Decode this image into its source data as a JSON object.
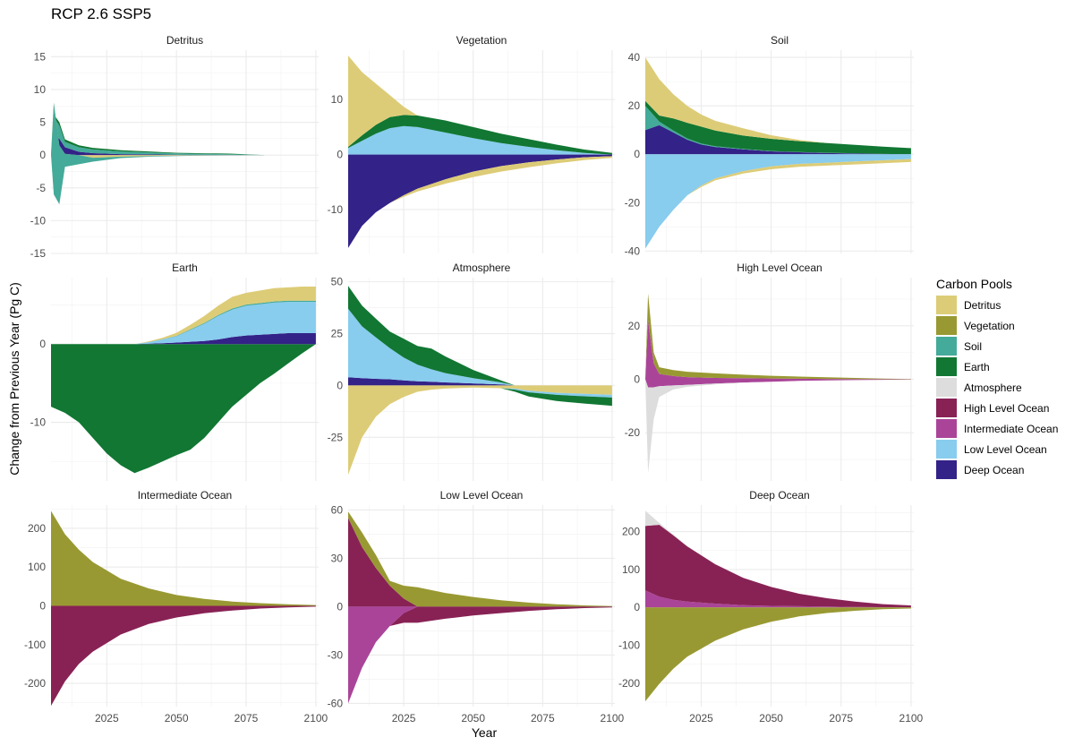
{
  "chart_data": {
    "type": "area",
    "title": "RCP 2.6 SSP5",
    "xlabel": "Year",
    "ylabel": "Change from Previous Year (Pg C)",
    "xlim": [
      2005,
      2101
    ],
    "xticks": [
      2025,
      2050,
      2075,
      2100
    ],
    "grid": true,
    "legend": {
      "title": "Carbon Pools",
      "position": "right",
      "entries": [
        {
          "name": "Detritus",
          "color": "#DDCC77"
        },
        {
          "name": "Vegetation",
          "color": "#999933"
        },
        {
          "name": "Soil",
          "color": "#44AA99"
        },
        {
          "name": "Earth",
          "color": "#117733"
        },
        {
          "name": "Atmosphere",
          "color": "#DDDDDD"
        },
        {
          "name": "High Level Ocean",
          "color": "#882255"
        },
        {
          "name": "Intermediate Ocean",
          "color": "#AA4499"
        },
        {
          "name": "Low Level Ocean",
          "color": "#88CCEE"
        },
        {
          "name": "Deep Ocean",
          "color": "#332288"
        }
      ]
    },
    "facets": [
      {
        "name": "Detritus",
        "ylim": [
          -15,
          16
        ],
        "yticks": [
          -15,
          -10,
          -5,
          0,
          5,
          10,
          15
        ],
        "x": [
          2005,
          2006,
          2008,
          2010,
          2015,
          2020,
          2030,
          2040,
          2050,
          2060,
          2070,
          2082
        ],
        "series": [
          {
            "name": "Deep Ocean",
            "values": [
              0,
              3.2,
              2.5,
              1.2,
              0.5,
              0.3,
              0.15,
              0.1,
              0.05,
              0.03,
              0.02,
              0
            ]
          },
          {
            "name": "Soil",
            "values": [
              0,
              2.6,
              2.0,
              0.8,
              0.7,
              0.55,
              0.4,
              0.3,
              0.2,
              0.15,
              0.1,
              0
            ]
          },
          {
            "name": "Earth",
            "values": [
              0,
              0.4,
              0.5,
              0.4,
              0.3,
              0.25,
              0.2,
              0.15,
              0.1,
              0.1,
              0.1,
              0
            ]
          },
          {
            "name": "Detritus",
            "values": [
              0,
              8,
              1.5,
              0.2,
              0,
              -0.4,
              -0.25,
              -0.15,
              -0.1,
              -0.05,
              -0.03,
              0
            ]
          },
          {
            "name": "Soil",
            "values": [
              0,
              -14,
              -9,
              -2,
              -1.4,
              -0.6,
              -0.2,
              -0.1,
              -0.05,
              -0.03,
              -0.01,
              0
            ]
          }
        ]
      },
      {
        "name": "Vegetation",
        "ylim": [
          -18,
          19
        ],
        "yticks": [
          -10,
          0,
          10
        ],
        "x": [
          2005,
          2010,
          2015,
          2020,
          2025,
          2030,
          2040,
          2050,
          2060,
          2070,
          2080,
          2090,
          2100
        ],
        "series": [
          {
            "name": "Low Level Ocean",
            "values": [
              1.2,
              2.5,
              3.8,
              4.8,
              5.2,
              5.0,
              4.0,
              3.0,
              2.1,
              1.4,
              0.8,
              0.3,
              0
            ]
          },
          {
            "name": "Earth",
            "values": [
              0.2,
              1.0,
              1.6,
              2.0,
              2.0,
              2.1,
              2.2,
              2.0,
              1.7,
              1.4,
              1.0,
              0.6,
              0.3
            ]
          },
          {
            "name": "Detritus",
            "values": [
              16.6,
              11.5,
              7.5,
              4.0,
              1.5,
              0,
              0,
              0,
              0,
              0,
              0,
              0,
              0
            ]
          },
          {
            "name": "Deep Ocean",
            "values": [
              -17,
              -13,
              -10.5,
              -8.8,
              -7.4,
              -6.2,
              -4.5,
              -3.1,
              -2.1,
              -1.4,
              -0.9,
              -0.5,
              -0.3
            ]
          },
          {
            "name": "Detritus",
            "values": [
              0,
              0,
              0,
              0,
              -0.3,
              -0.5,
              -0.8,
              -1.0,
              -1.0,
              -0.9,
              -0.7,
              -0.5,
              -0.3
            ]
          }
        ]
      },
      {
        "name": "Soil",
        "ylim": [
          -41,
          43
        ],
        "yticks": [
          -40,
          -20,
          0,
          20,
          40
        ],
        "x": [
          2005,
          2010,
          2015,
          2020,
          2025,
          2030,
          2040,
          2050,
          2060,
          2070,
          2080,
          2090,
          2100
        ],
        "series": [
          {
            "name": "Deep Ocean",
            "values": [
              10,
              12,
              9,
              6,
              4,
              3,
              2,
              1.2,
              0.8,
              0.5,
              0.3,
              0.1,
              0
            ]
          },
          {
            "name": "Soil",
            "values": [
              10,
              1.5,
              0.8,
              0.5,
              0.4,
              0.3,
              0.2,
              0.15,
              0.1,
              0.1,
              0.1,
              0,
              0
            ]
          },
          {
            "name": "Earth",
            "values": [
              2,
              2.5,
              5,
              6.5,
              7,
              6.5,
              5.5,
              5,
              4.5,
              4,
              3.5,
              3,
              2.5
            ]
          },
          {
            "name": "Detritus",
            "values": [
              18,
              15,
              10,
              7,
              5,
              4,
              3,
              1.5,
              0.5,
              0,
              0,
              0,
              0
            ]
          },
          {
            "name": "Low Level Ocean",
            "values": [
              -39,
              -30,
              -23,
              -17,
              -13,
              -10,
              -7,
              -5,
              -4,
              -3.5,
              -3,
              -2.5,
              -2
            ]
          },
          {
            "name": "Detritus",
            "values": [
              0,
              0,
              0,
              0,
              -0.5,
              -0.8,
              -1,
              -1.2,
              -1.2,
              -1.2,
              -1.2,
              -1.2,
              -1.2
            ]
          }
        ]
      },
      {
        "name": "Earth",
        "ylim": [
          -17.5,
          8.5
        ],
        "yticks": [
          -10,
          0
        ],
        "x": [
          2005,
          2010,
          2015,
          2020,
          2025,
          2030,
          2035,
          2040,
          2045,
          2050,
          2055,
          2060,
          2065,
          2070,
          2075,
          2080,
          2085,
          2090,
          2095,
          2100
        ],
        "series": [
          {
            "name": "Earth",
            "values": [
              -8,
              -8.8,
              -10,
              -12,
              -14,
              -15.5,
              -16.5,
              -15.8,
              -15,
              -14.2,
              -13.5,
              -12,
              -10,
              -8,
              -6.5,
              -5,
              -3.8,
              -2.5,
              -1.2,
              0
            ]
          },
          {
            "name": "Deep Ocean",
            "values": [
              0,
              0,
              0,
              0,
              0,
              0,
              0,
              0.05,
              0.1,
              0.2,
              0.3,
              0.4,
              0.6,
              0.9,
              1.1,
              1.2,
              1.3,
              1.4,
              1.4,
              1.4
            ]
          },
          {
            "name": "Low Level Ocean",
            "values": [
              0,
              0,
              0,
              0,
              0,
              0,
              0,
              0.2,
              0.5,
              0.8,
              1.5,
              2.2,
              3.0,
              3.5,
              3.8,
              3.9,
              4.0,
              4.0,
              4.0,
              4.0
            ]
          },
          {
            "name": "Soil",
            "values": [
              0,
              0,
              0,
              0,
              0,
              0,
              0,
              0,
              0.02,
              0.05,
              0.08,
              0.1,
              0.12,
              0.15,
              0.15,
              0.15,
              0.15,
              0.15,
              0.15,
              0.15
            ]
          },
          {
            "name": "Detritus",
            "values": [
              0,
              0,
              0,
              0,
              0,
              0,
              0,
              0.1,
              0.2,
              0.4,
              0.6,
              0.9,
              1.2,
              1.5,
              1.5,
              1.6,
              1.7,
              1.7,
              1.8,
              1.8
            ]
          }
        ]
      },
      {
        "name": "Atmosphere",
        "ylim": [
          -46,
          52
        ],
        "yticks": [
          -25,
          0,
          25,
          50
        ],
        "x": [
          2005,
          2010,
          2015,
          2020,
          2025,
          2030,
          2035,
          2040,
          2050,
          2060,
          2065,
          2070,
          2080,
          2090,
          2100
        ],
        "series": [
          {
            "name": "Deep Ocean",
            "values": [
              4,
              3.5,
              3.2,
              3,
              2.5,
              2,
              1.8,
              1.5,
              1,
              0.5,
              0,
              0,
              0,
              0,
              0
            ]
          },
          {
            "name": "Low Level Ocean",
            "values": [
              33,
              25,
              20,
              15,
              11,
              8,
              6,
              4.5,
              2.5,
              1,
              0,
              0,
              0,
              0,
              0
            ]
          },
          {
            "name": "Earth",
            "values": [
              11,
              10,
              9,
              8,
              9,
              9,
              10,
              8,
              4,
              1,
              0,
              0,
              0,
              0,
              0
            ]
          },
          {
            "name": "Detritus",
            "values": [
              -43,
              -25,
              -15,
              -9,
              -5.5,
              -3,
              -2,
              -1.5,
              -1,
              -1.3,
              -1.5,
              -2.5,
              -3.5,
              -4,
              -4.5
            ]
          },
          {
            "name": "Low Level Ocean",
            "values": [
              0,
              0,
              0,
              0,
              0,
              0,
              0,
              0,
              0,
              0,
              -0.5,
              -0.8,
              -1,
              -1.2,
              -1.3
            ]
          },
          {
            "name": "Earth",
            "values": [
              0,
              0,
              0,
              0,
              0,
              0,
              0,
              0,
              0,
              0,
              -1,
              -2,
              -3,
              -3.5,
              -4
            ]
          }
        ]
      },
      {
        "name": "High Level Ocean",
        "ylim": [
          -38,
          38
        ],
        "yticks": [
          -20,
          0,
          20
        ],
        "x": [
          2005,
          2006,
          2008,
          2010,
          2015,
          2020,
          2030,
          2040,
          2050,
          2060,
          2070,
          2080,
          2090,
          2100
        ],
        "series": [
          {
            "name": "Intermediate Ocean",
            "values": [
              0,
              22,
              6,
              2,
              1.2,
              0.8,
              0.5,
              0.4,
              0.3,
              0.2,
              0.15,
              0.1,
              0.05,
              0
            ]
          },
          {
            "name": "Vegetation",
            "values": [
              0,
              10,
              4,
              2.5,
              2.2,
              2.0,
              1.7,
              1.3,
              1.0,
              0.8,
              0.6,
              0.4,
              0.2,
              0.1
            ]
          },
          {
            "name": "Intermediate Ocean",
            "values": [
              0,
              -3,
              -3,
              -2.6,
              -2.3,
              -2.1,
              -1.6,
              -1.2,
              -0.9,
              -0.6,
              -0.4,
              -0.3,
              -0.2,
              -0.1
            ]
          },
          {
            "name": "Atmosphere",
            "values": [
              0,
              -32,
              -12,
              -4,
              -1.5,
              -0.7,
              -0.3,
              -0.1,
              0,
              0,
              0,
              0,
              0,
              0
            ]
          }
        ]
      },
      {
        "name": "Intermediate Ocean",
        "ylim": [
          -260,
          260
        ],
        "yticks": [
          -200,
          -100,
          0,
          100,
          200
        ],
        "x": [
          2005,
          2010,
          2015,
          2020,
          2030,
          2040,
          2050,
          2060,
          2070,
          2080,
          2090,
          2100
        ],
        "series": [
          {
            "name": "Vegetation",
            "values": [
              245,
              185,
              145,
              113,
              70,
              45,
              28,
              18,
              11,
              7,
              4,
              2
            ]
          },
          {
            "name": "High Level Ocean",
            "values": [
              -258,
              -195,
              -150,
              -118,
              -74,
              -47,
              -30,
              -19,
              -12,
              -7,
              -4,
              -2
            ]
          }
        ]
      },
      {
        "name": "Low Level Ocean",
        "ylim": [
          -62,
          63
        ],
        "yticks": [
          -60,
          -30,
          0,
          30,
          60
        ],
        "x": [
          2005,
          2010,
          2015,
          2020,
          2025,
          2030,
          2040,
          2050,
          2060,
          2070,
          2080,
          2090,
          2100
        ],
        "series": [
          {
            "name": "High Level Ocean",
            "values": [
              55,
              37,
              24,
              13,
              5,
              0,
              0,
              0,
              0,
              0,
              0,
              0,
              0
            ]
          },
          {
            "name": "Vegetation",
            "values": [
              4,
              9,
              8,
              3,
              8,
              12,
              8.5,
              6,
              4,
              2.5,
              1.5,
              0.8,
              0.4
            ]
          },
          {
            "name": "Intermediate Ocean",
            "values": [
              -60,
              -38,
              -22,
              -12,
              -4,
              0,
              0,
              0,
              0,
              0,
              0,
              0,
              0
            ]
          },
          {
            "name": "High Level Ocean",
            "values": [
              0,
              0,
              0,
              0,
              -6,
              -10,
              -7.5,
              -5.5,
              -4,
              -2.6,
              -1.6,
              -0.9,
              -0.5
            ]
          }
        ]
      },
      {
        "name": "Deep Ocean",
        "ylim": [
          -262,
          270
        ],
        "yticks": [
          -200,
          -100,
          0,
          100,
          200
        ],
        "x": [
          2005,
          2010,
          2015,
          2020,
          2030,
          2040,
          2050,
          2060,
          2070,
          2080,
          2090,
          2100
        ],
        "series": [
          {
            "name": "Intermediate Ocean",
            "values": [
              45,
              28,
              20,
              15,
              10,
              6,
              4,
              3,
              2,
              1,
              0.5,
              0
            ]
          },
          {
            "name": "High Level Ocean",
            "values": [
              170,
              190,
              170,
              146,
              104,
              72,
              50,
              33,
              22,
              14,
              8,
              5
            ]
          },
          {
            "name": "Atmosphere",
            "values": [
              40,
              5,
              2,
              1,
              0.5,
              0,
              0,
              0,
              0,
              0,
              0,
              0
            ]
          },
          {
            "name": "Vegetation",
            "values": [
              -248,
              -202,
              -162,
              -130,
              -88,
              -58,
              -38,
              -24,
              -15,
              -9,
              -5,
              -3
            ]
          }
        ]
      }
    ]
  }
}
